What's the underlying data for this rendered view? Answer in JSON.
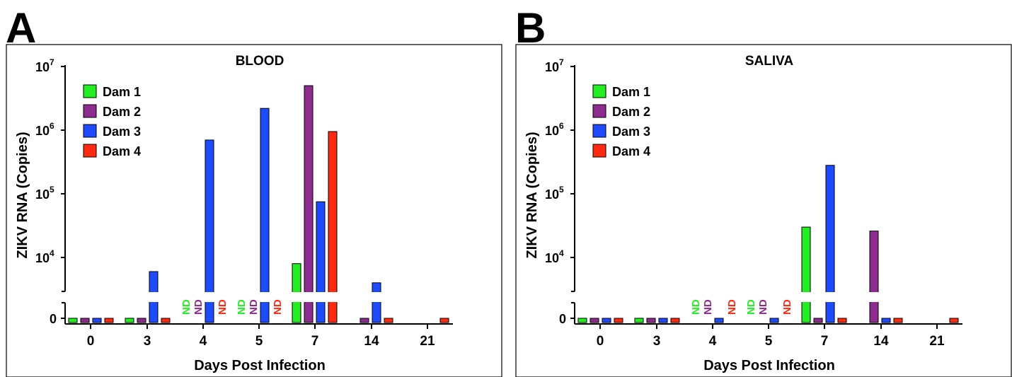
{
  "chart_data": [
    {
      "panel_letter": "A",
      "type": "bar",
      "title": "BLOOD",
      "xlabel": "Days Post Infection",
      "ylabel": "ZIKV RNA (Copies)",
      "yscale": "log (segmented axis with break; 0 shown below break)",
      "ylim": [
        1000,
        10000000
      ],
      "y_ticks": [
        {
          "base": "0",
          "exp": ""
        },
        {
          "base": "10",
          "exp": "4"
        },
        {
          "base": "10",
          "exp": "5"
        },
        {
          "base": "10",
          "exp": "6"
        },
        {
          "base": "10",
          "exp": "7"
        }
      ],
      "categories": [
        "0",
        "3",
        "4",
        "5",
        "7",
        "14",
        "21"
      ],
      "legend_position": "top-left",
      "series": [
        {
          "name": "Dam 1",
          "color": "#22ee22",
          "values": [
            0,
            0,
            "ND",
            "ND",
            8000,
            null,
            null
          ]
        },
        {
          "name": "Dam 2",
          "color": "#8e2b8e",
          "values": [
            0,
            0,
            "ND",
            "ND",
            5000000,
            0,
            null
          ]
        },
        {
          "name": "Dam 3",
          "color": "#1f4bff",
          "values": [
            0,
            6000,
            700000,
            2200000,
            75000,
            4000,
            null
          ]
        },
        {
          "name": "Dam 4",
          "color": "#ff2a10",
          "values": [
            0,
            0,
            "ND",
            "ND",
            950000,
            0,
            0
          ]
        }
      ]
    },
    {
      "panel_letter": "B",
      "type": "bar",
      "title": "SALIVA",
      "xlabel": "Days Post Infection",
      "ylabel": "ZIKV RNA (Copies)",
      "yscale": "log (segmented axis with break; 0 shown below break)",
      "ylim": [
        1000,
        10000000
      ],
      "y_ticks": [
        {
          "base": "0",
          "exp": ""
        },
        {
          "base": "10",
          "exp": "4"
        },
        {
          "base": "10",
          "exp": "5"
        },
        {
          "base": "10",
          "exp": "6"
        },
        {
          "base": "10",
          "exp": "7"
        }
      ],
      "categories": [
        "0",
        "3",
        "4",
        "5",
        "7",
        "14",
        "21"
      ],
      "legend_position": "top-left",
      "series": [
        {
          "name": "Dam 1",
          "color": "#22ee22",
          "values": [
            0,
            0,
            "ND",
            "ND",
            30000,
            null,
            null
          ]
        },
        {
          "name": "Dam 2",
          "color": "#8e2b8e",
          "values": [
            0,
            0,
            "ND",
            "ND",
            0,
            26000,
            null
          ]
        },
        {
          "name": "Dam 3",
          "color": "#1f4bff",
          "values": [
            0,
            0,
            0,
            0,
            280000,
            0,
            null
          ]
        },
        {
          "name": "Dam 4",
          "color": "#ff2a10",
          "values": [
            0,
            0,
            "ND",
            "ND",
            0,
            0,
            0
          ]
        }
      ]
    }
  ],
  "nd_label": "ND"
}
